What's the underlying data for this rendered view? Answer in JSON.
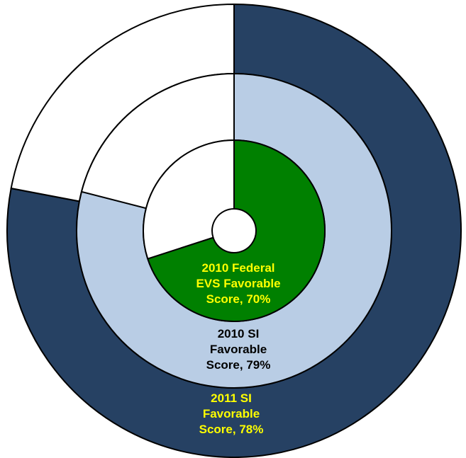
{
  "chart_data": {
    "type": "pie",
    "chart_style": "concentric-donut",
    "grid": false,
    "legend": "none",
    "rings": [
      {
        "level": "outer",
        "value": 78,
        "unit": "%",
        "label_lines": [
          "2011 SI",
          "Favorable",
          "Score, 78%"
        ],
        "fill_color": "#264163",
        "remainder_color": "#ffffff",
        "label_color": "#ffff00"
      },
      {
        "level": "middle",
        "value": 79,
        "unit": "%",
        "label_lines": [
          "2010 SI",
          "Favorable",
          "Score, 79%"
        ],
        "fill_color": "#b9cde5",
        "remainder_color": "#ffffff",
        "label_color": "#000000"
      },
      {
        "level": "inner",
        "value": 70,
        "unit": "%",
        "label_lines": [
          "2010 Federal",
          "EVS Favorable",
          "Score, 70%"
        ],
        "fill_color": "#008000",
        "remainder_color": "#ffffff",
        "label_color": "#ffff00"
      }
    ],
    "stroke_color": "#000000"
  }
}
